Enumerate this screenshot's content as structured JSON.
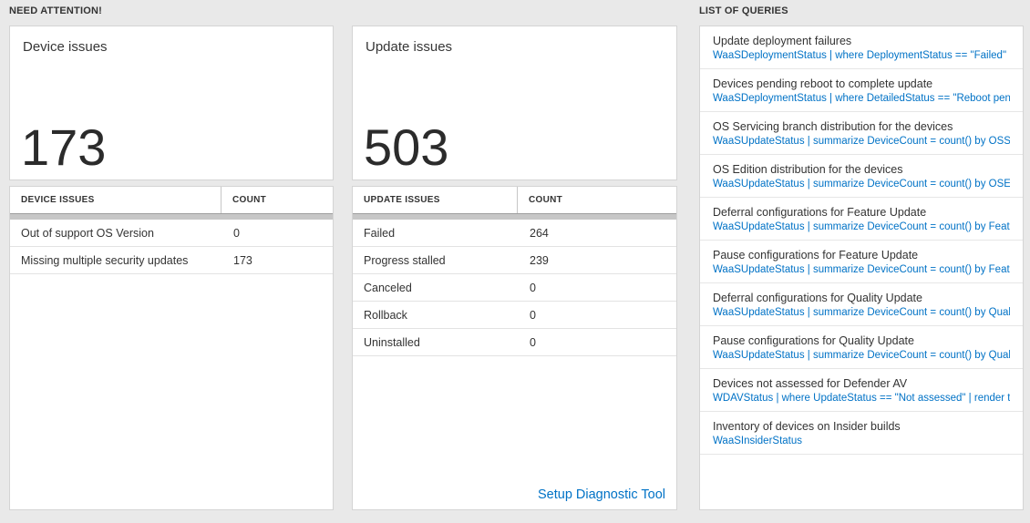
{
  "sections": {
    "need_attention": "NEED ATTENTION!",
    "queries": "LIST OF QUERIES"
  },
  "device_card": {
    "title": "Device issues",
    "count": "173",
    "table": {
      "col_issue": "DEVICE ISSUES",
      "col_count": "COUNT",
      "rows": [
        {
          "label": "Out of support OS Version",
          "value": "0"
        },
        {
          "label": "Missing multiple security updates",
          "value": "173"
        }
      ]
    }
  },
  "update_card": {
    "title": "Update issues",
    "count": "503",
    "table": {
      "col_issue": "UPDATE ISSUES",
      "col_count": "COUNT",
      "rows": [
        {
          "label": "Failed",
          "value": "264"
        },
        {
          "label": "Progress stalled",
          "value": "239"
        },
        {
          "label": "Canceled",
          "value": "0"
        },
        {
          "label": "Rollback",
          "value": "0"
        },
        {
          "label": "Uninstalled",
          "value": "0"
        }
      ]
    },
    "diagnostic_link": "Setup Diagnostic Tool"
  },
  "query_list": [
    {
      "title": "Update deployment failures",
      "query": "WaaSDeploymentStatus | where DeploymentStatus == \"Failed\" |..."
    },
    {
      "title": "Devices pending reboot to complete update",
      "query": "WaaSDeploymentStatus | where DetailedStatus == \"Reboot pend..."
    },
    {
      "title": "OS Servicing branch distribution for the devices",
      "query": "WaaSUpdateStatus | summarize DeviceCount = count() by OSSer..."
    },
    {
      "title": "OS Edition distribution for the devices",
      "query": "WaaSUpdateStatus | summarize DeviceCount = count() by OSEdit..."
    },
    {
      "title": "Deferral configurations for Feature Update",
      "query": "WaaSUpdateStatus | summarize DeviceCount = count() by Featur..."
    },
    {
      "title": "Pause configurations for Feature Update",
      "query": "WaaSUpdateStatus | summarize DeviceCount = count() by Featur..."
    },
    {
      "title": "Deferral configurations for Quality Update",
      "query": "WaaSUpdateStatus | summarize DeviceCount = count() by Qualit..."
    },
    {
      "title": "Pause configurations for Quality Update",
      "query": "WaaSUpdateStatus | summarize DeviceCount = count() by Qualit..."
    },
    {
      "title": "Devices not assessed for Defender AV",
      "query": "WDAVStatus | where UpdateStatus == \"Not assessed\" | render ta..."
    },
    {
      "title": "Inventory of devices on Insider builds",
      "query": "WaaSInsiderStatus"
    }
  ],
  "colors": {
    "link_blue": "#0072c6",
    "page_bg": "#e9e9e9",
    "card_bg": "#ffffff"
  }
}
